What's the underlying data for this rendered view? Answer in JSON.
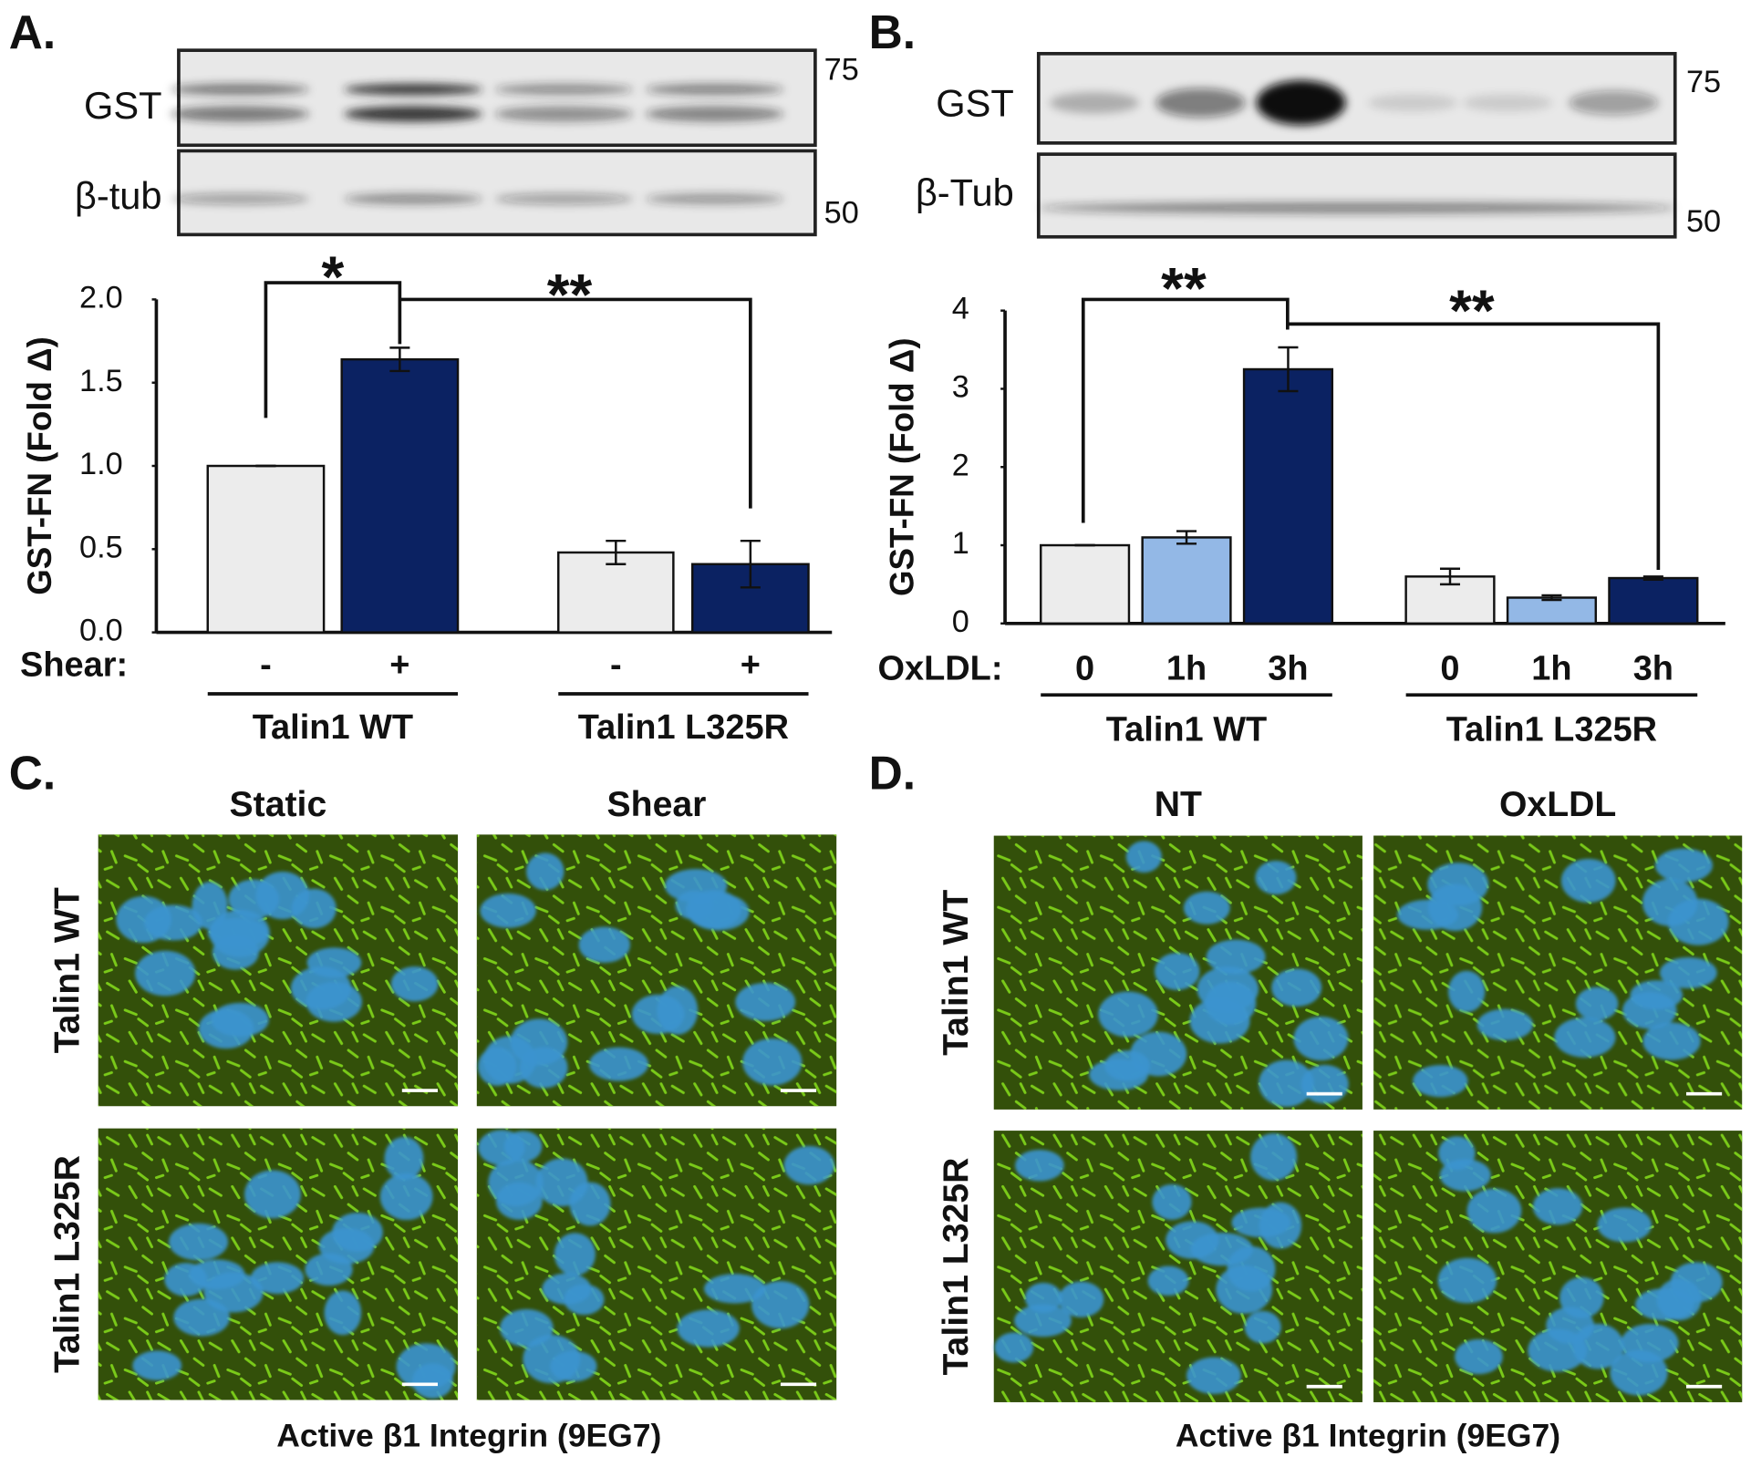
{
  "panels": {
    "a": "A.",
    "b": "B.",
    "c": "C.",
    "d": "D."
  },
  "blots": [
    {
      "bands": [
        "GST",
        "β-tub"
      ],
      "markers": [
        "75",
        "50"
      ]
    },
    {
      "bands": [
        "GST",
        "β-Tub"
      ],
      "markers": [
        "75",
        "50"
      ]
    }
  ],
  "chart_data": [
    {
      "type": "bar",
      "ylabel": "GST-FN (Fold Δ)",
      "xlabel": "Shear:",
      "categories": [
        "-",
        "+",
        "-",
        "+"
      ],
      "groups": [
        "Talin1 WT",
        "Talin1 L325R"
      ],
      "values": [
        1.0,
        1.64,
        0.48,
        0.41
      ],
      "errors": [
        0,
        0.07,
        0.07,
        0.14
      ],
      "colors": [
        "#ececec",
        "#0b2262",
        "#ececec",
        "#0b2262"
      ],
      "ylim": [
        0,
        2
      ],
      "yticks": [
        {
          "value": 0,
          "label": "0.0"
        },
        0.5,
        {
          "value": 1,
          "label": "1.0"
        },
        1.5,
        {
          "value": 2,
          "label": "2.0"
        }
      ],
      "annotations": [
        "*",
        "**"
      ]
    },
    {
      "type": "bar",
      "ylabel": "GST-FN (Fold Δ)",
      "xlabel": "OxLDL:",
      "categories": [
        "0",
        "1h",
        "3h",
        "0",
        "1h",
        "3h"
      ],
      "groups": [
        "Talin1 WT",
        "Talin1 L325R"
      ],
      "values": [
        1.0,
        1.1,
        3.25,
        0.6,
        0.33,
        0.58
      ],
      "errors": [
        0,
        0.08,
        0.28,
        0.1,
        0.03,
        0.02
      ],
      "colors": [
        "#ececec",
        "#93b8e6",
        "#0b2262",
        "#ececec",
        "#93b8e6",
        "#0b2262"
      ],
      "ylim": [
        0,
        4
      ],
      "yticks": [
        0,
        1,
        2,
        3,
        4
      ],
      "annotations": [
        "**",
        "**"
      ]
    }
  ],
  "microscopy": [
    {
      "columns": [
        "Static",
        "Shear"
      ],
      "rows": [
        "Talin1 WT",
        "Talin1 L325R"
      ],
      "caption": "Active β1 Integrin (9EG7)"
    },
    {
      "columns": [
        "NT",
        "OxLDL"
      ],
      "rows": [
        "Talin1 WT",
        "Talin1 L325R"
      ],
      "caption": "Active β1 Integrin (9EG7)"
    }
  ]
}
